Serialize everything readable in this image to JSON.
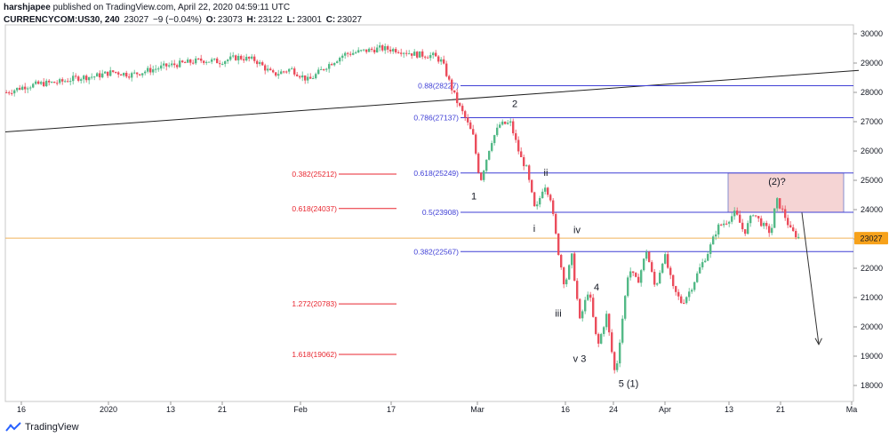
{
  "header": {
    "user": "harshjapee",
    "published": "published on TradingView.com, April 22, 2020 04:59:11 UTC",
    "symbol": "CURRENCYCOM:US30, 240",
    "last": "23027",
    "change": "−9 (−0.04%)",
    "o_label": "O:",
    "o": "23073",
    "h_label": "H:",
    "h": "23122",
    "l_label": "L:",
    "l": "23001",
    "c_label": "C:",
    "c": "23027"
  },
  "footer": {
    "brand": "TradingView"
  },
  "colors": {
    "up": "#53b987",
    "down": "#eb4d5c",
    "blue_fib": "#3f3fd6",
    "red_fib": "#e8262f",
    "price_tag": "#f7a21b",
    "box": "#f2c6c6"
  },
  "chart_data": {
    "type": "candlestick",
    "title": "",
    "ylim": [
      17600,
      30200
    ],
    "y_ticks": [
      18000,
      19000,
      20000,
      21000,
      22000,
      23000,
      24000,
      25000,
      26000,
      27000,
      28000,
      29000,
      30000
    ],
    "y_tick_labels": [
      "18000",
      "19000",
      "20000",
      "21000",
      "22000",
      "23000",
      "24000",
      "25000",
      "26000",
      "27000",
      "28000",
      "29000",
      "30000"
    ],
    "x_ticks": [
      "16",
      "2020",
      "13",
      "21",
      "Feb",
      "17",
      "Mar",
      "16",
      "24",
      "Apr",
      "13",
      "21",
      "Ma"
    ],
    "last_price": 23027,
    "last_price_label": "23027",
    "price_path": [
      [
        0,
        28000
      ],
      [
        20,
        28200
      ],
      [
        40,
        28300
      ],
      [
        60,
        28350
      ],
      [
        80,
        28500
      ],
      [
        100,
        28550
      ],
      [
        120,
        28700
      ],
      [
        140,
        28600
      ],
      [
        160,
        28750
      ],
      [
        180,
        28900
      ],
      [
        200,
        29000
      ],
      [
        220,
        29100
      ],
      [
        240,
        29050
      ],
      [
        260,
        29200
      ],
      [
        280,
        29100
      ],
      [
        300,
        28600
      ],
      [
        320,
        28800
      ],
      [
        340,
        28400
      ],
      [
        360,
        28900
      ],
      [
        380,
        29300
      ],
      [
        400,
        29400
      ],
      [
        420,
        29500
      ],
      [
        440,
        29450
      ],
      [
        460,
        29300
      ],
      [
        480,
        29250
      ],
      [
        490,
        29050
      ],
      [
        500,
        28200
      ],
      [
        508,
        27600
      ],
      [
        515,
        27200
      ],
      [
        525,
        26500
      ],
      [
        533,
        24950
      ],
      [
        545,
        26300
      ],
      [
        555,
        26900
      ],
      [
        567,
        26950
      ],
      [
        578,
        25800
      ],
      [
        585,
        25400
      ],
      [
        595,
        23900
      ],
      [
        605,
        24900
      ],
      [
        612,
        24400
      ],
      [
        620,
        22700
      ],
      [
        628,
        21400
      ],
      [
        636,
        22400
      ],
      [
        645,
        20200
      ],
      [
        655,
        21300
      ],
      [
        665,
        19300
      ],
      [
        675,
        20400
      ],
      [
        685,
        18300
      ],
      [
        693,
        20300
      ],
      [
        700,
        22000
      ],
      [
        710,
        21500
      ],
      [
        720,
        22600
      ],
      [
        730,
        21300
      ],
      [
        740,
        22500
      ],
      [
        750,
        21300
      ],
      [
        760,
        20800
      ],
      [
        770,
        21300
      ],
      [
        780,
        22000
      ],
      [
        790,
        22600
      ],
      [
        800,
        23400
      ],
      [
        810,
        23600
      ],
      [
        820,
        23900
      ],
      [
        830,
        23200
      ],
      [
        840,
        23900
      ],
      [
        850,
        23500
      ],
      [
        860,
        23200
      ],
      [
        866,
        24350
      ],
      [
        874,
        23900
      ],
      [
        882,
        23300
      ],
      [
        892,
        23027
      ]
    ],
    "blue_fib_levels": [
      {
        "label": "0.88(28227)",
        "value": 28227
      },
      {
        "label": "0.786(27137)",
        "value": 27137
      },
      {
        "label": "0.618(25249)",
        "value": 25249
      },
      {
        "label": "0.5(23908)",
        "value": 23908
      },
      {
        "label": "0.382(22567)",
        "value": 22567
      }
    ],
    "red_fib_levels": [
      {
        "label": "0.382(25212)",
        "value": 25212
      },
      {
        "label": "0.618(24037)",
        "value": 24037
      },
      {
        "label": "1.272(20783)",
        "value": 20783
      },
      {
        "label": "1.618(19062)",
        "value": 19062
      }
    ],
    "wave_labels": [
      {
        "text": "1",
        "price": 24350,
        "at": 527
      },
      {
        "text": "2",
        "price": 27500,
        "at": 573
      },
      {
        "text": "ii",
        "price": 25150,
        "at": 608
      },
      {
        "text": "i",
        "price": 23250,
        "at": 595
      },
      {
        "text": "iv",
        "price": 23200,
        "at": 643
      },
      {
        "text": "4",
        "price": 21250,
        "at": 665
      },
      {
        "text": "iii",
        "price": 20350,
        "at": 622
      },
      {
        "text": "v 3",
        "price": 18800,
        "at": 646
      },
      {
        "text": "5 (1)",
        "price": 17950,
        "at": 701
      },
      {
        "text": "(2)?",
        "price": 24850,
        "at": 868
      }
    ],
    "trendline": {
      "from": [
        0,
        26650
      ],
      "to": [
        960,
        28750
      ]
    },
    "target_arrow": {
      "from": [
        896,
        23900
      ],
      "to": [
        915,
        19400
      ]
    },
    "zone": {
      "top": 25249,
      "bottom": 23908
    }
  }
}
